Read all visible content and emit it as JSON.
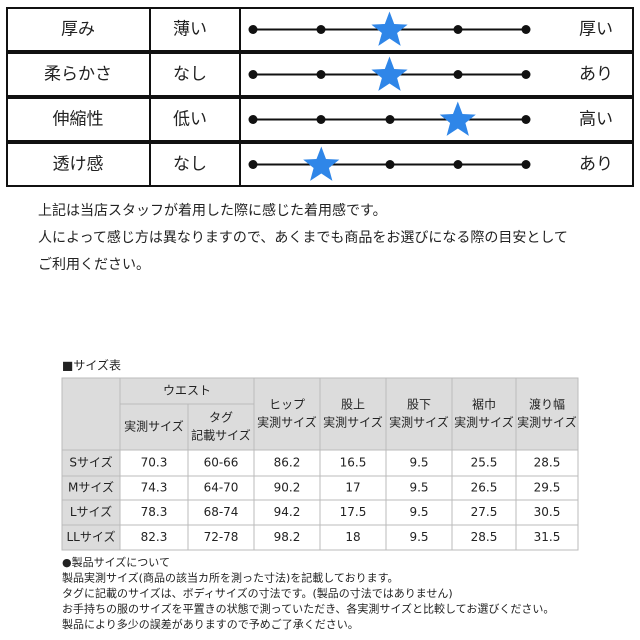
{
  "feel_table": {
    "rows": [
      {
        "label": "厚み",
        "low": "薄い",
        "high": "厚い",
        "level": 3
      },
      {
        "label": "柔らかさ",
        "low": "なし",
        "high": "あり",
        "level": 3
      },
      {
        "label": "伸縮性",
        "low": "低い",
        "high": "高い",
        "level": 4
      },
      {
        "label": "透け感",
        "low": "なし",
        "high": "あり",
        "level": 2
      }
    ]
  },
  "notes": [
    "上記は当店スタッフが着用した際に感じた着用感です。",
    "人によって感じ方は異なりますので、あくまでも商品をお選びになる際の目安として",
    "ご利用ください。"
  ],
  "size_table": {
    "title": "■サイズ表",
    "group_header": "ウエスト",
    "headers": [
      [
        "実測サイズ"
      ],
      [
        "タグ",
        "記載サイズ"
      ],
      [
        "ヒップ",
        "実測サイズ"
      ],
      [
        "股上",
        "実測サイズ"
      ],
      [
        "股下",
        "実測サイズ"
      ],
      [
        "裾巾",
        "実測サイズ"
      ],
      [
        "渡り幅",
        "実測サイズ"
      ]
    ],
    "rows": [
      [
        "Sサイズ",
        70.3,
        "60-66",
        86.2,
        16.5,
        9.5,
        25.5,
        28.5
      ],
      [
        "Mサイズ",
        74.3,
        "64-70",
        90.2,
        17,
        9.5,
        26.5,
        29.5
      ],
      [
        "Lサイズ",
        78.3,
        "68-74",
        94.2,
        17.5,
        9.5,
        27.5,
        30.5
      ],
      [
        "LLサイズ",
        82.3,
        "72-78",
        98.2,
        18,
        9.5,
        28.5,
        31.5
      ]
    ]
  },
  "footnotes": [
    "●製品サイズについて",
    "製品実測サイズ(商品の該当カ所を測った寸法)を記載しております。",
    "タグに記載のサイズは、ボディサイズの寸法です。(製品の寸法ではありません)",
    "お手持ちの服のサイズを平置きの状態で測っていただき、各実測サイズと比較してお選びください。",
    "製品により多少の誤差がありますので予めご了承ください。"
  ]
}
